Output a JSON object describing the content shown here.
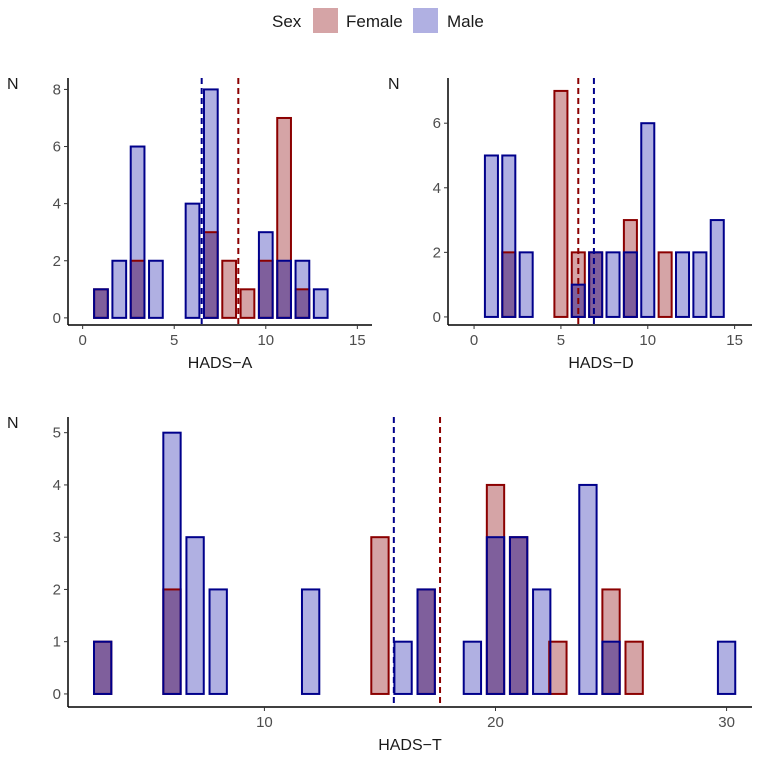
{
  "legend": {
    "title": "Sex",
    "items": [
      {
        "name": "Female",
        "fill": "#d5a4a6",
        "stroke": "#8b0000"
      },
      {
        "name": "Male",
        "fill": "#b0b0e2",
        "stroke": "#00008b"
      }
    ]
  },
  "colors": {
    "female_fill": "#d5a4a6",
    "female_stroke": "#8b0000",
    "male_fill": "#b0b0e2",
    "male_stroke": "#00008b",
    "overlap_fill": "#7f5f9c"
  },
  "chart_data": [
    {
      "type": "bar",
      "title": "",
      "xlabel": "HADS−A",
      "ylabel": "N",
      "xlim": [
        -0.8,
        15.8
      ],
      "ylim": [
        -0.25,
        8.4
      ],
      "xticks": [
        0,
        5,
        10,
        15
      ],
      "yticks": [
        0,
        2,
        4,
        6,
        8
      ],
      "series": [
        {
          "name": "Female",
          "x": [
            1,
            3,
            7,
            8,
            9,
            10,
            11,
            12
          ],
          "values": [
            1,
            2,
            3,
            2,
            1,
            2,
            7,
            1
          ]
        },
        {
          "name": "Male",
          "x": [
            1,
            2,
            3,
            4,
            6,
            7,
            10,
            11,
            12,
            13
          ],
          "values": [
            1,
            2,
            6,
            2,
            4,
            8,
            3,
            2,
            2,
            1
          ]
        }
      ],
      "mean_lines": {
        "Female": 8.5,
        "Male": 6.5
      }
    },
    {
      "type": "bar",
      "title": "",
      "xlabel": "HADS−D",
      "ylabel": "N",
      "xlim": [
        -1.5,
        16
      ],
      "ylim": [
        -0.25,
        7.4
      ],
      "xticks": [
        0,
        5,
        10,
        15
      ],
      "yticks": [
        0,
        2,
        4,
        6
      ],
      "series": [
        {
          "name": "Female",
          "x": [
            2,
            5,
            6,
            7,
            9,
            11
          ],
          "values": [
            2,
            7,
            2,
            2,
            3,
            2
          ]
        },
        {
          "name": "Male",
          "x": [
            1,
            2,
            3,
            6,
            7,
            8,
            9,
            10,
            12,
            13,
            14
          ],
          "values": [
            5,
            5,
            2,
            1,
            2,
            2,
            2,
            6,
            2,
            2,
            3
          ]
        }
      ],
      "mean_lines": {
        "Female": 6.0,
        "Male": 6.9
      }
    },
    {
      "type": "bar",
      "title": "",
      "xlabel": "HADS−T",
      "ylabel": "N",
      "xlim": [
        1.5,
        31.1
      ],
      "ylim": [
        -0.25,
        5.3
      ],
      "xticks": [
        10,
        20,
        30
      ],
      "yticks": [
        0,
        1,
        2,
        3,
        4,
        5
      ],
      "series": [
        {
          "name": "Female",
          "x": [
            3,
            6,
            15,
            17,
            20,
            21,
            22.7,
            25,
            26
          ],
          "values": [
            1,
            2,
            3,
            2,
            4,
            3,
            1,
            2,
            1
          ]
        },
        {
          "name": "Male",
          "x": [
            3,
            6,
            7,
            8,
            12,
            16,
            17,
            19,
            20,
            21,
            22,
            24,
            25,
            30
          ],
          "values": [
            1,
            5,
            3,
            2,
            2,
            1,
            2,
            1,
            3,
            3,
            2,
            4,
            1,
            1
          ]
        }
      ],
      "mean_lines": {
        "Female": 17.6,
        "Male": 15.6
      }
    }
  ]
}
